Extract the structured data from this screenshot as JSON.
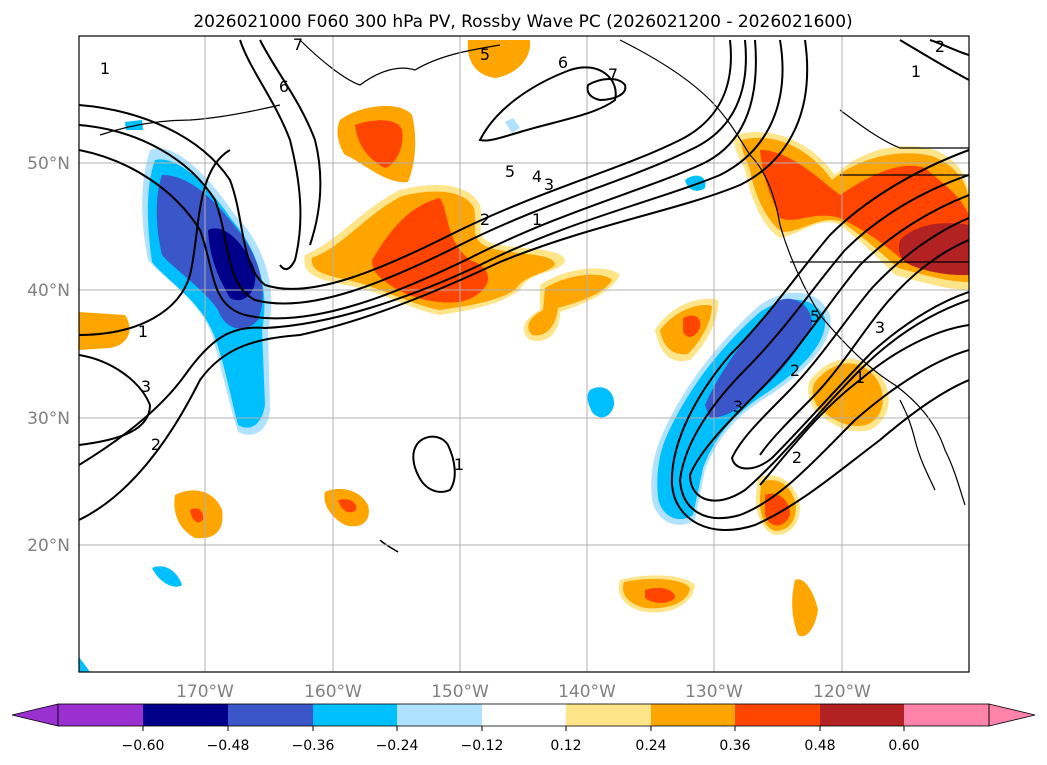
{
  "title": "2026021000 F060 300 hPa PV, Rossby Wave PC (2026021200 - 2026021600)",
  "map": {
    "lon_range": [
      -180,
      -110
    ],
    "lat_range": [
      10,
      60
    ],
    "x_ticks": [
      "170°W",
      "160°W",
      "150°W",
      "140°W",
      "130°W",
      "120°W"
    ],
    "x_tick_values": [
      -170,
      -160,
      -150,
      -140,
      -130,
      -120
    ],
    "y_ticks": [
      "50°N",
      "40°N",
      "30°N",
      "20°N"
    ],
    "y_tick_values": [
      50,
      40,
      30,
      20
    ],
    "gridlines": true
  },
  "colorbar": {
    "levels": [
      "−0.60",
      "−0.48",
      "−0.36",
      "−0.24",
      "−0.12",
      "0.12",
      "0.24",
      "0.36",
      "0.48",
      "0.60"
    ],
    "colors": [
      "#9b30d0",
      "#00008b",
      "#3a56c8",
      "#00bfff",
      "#b0e2ff",
      "#ffffff",
      "#ffe58a",
      "#ffa500",
      "#ff4500",
      "#b22222",
      "#ff83aa"
    ],
    "extend": "both"
  },
  "contours": {
    "labels": [
      "5",
      "6",
      "7",
      "1",
      "2",
      "3",
      "4",
      "5",
      "3",
      "2",
      "1",
      "1",
      "3",
      "2",
      "1",
      "3",
      "2",
      "1",
      "5",
      "6",
      "7",
      "2",
      "1"
    ]
  },
  "colors": {
    "neg_dark": "#00008b",
    "neg_med": "#3a56c8",
    "neg_light": "#00bfff",
    "neg_pale": "#b0e2ff",
    "pos_pale": "#ffe58a",
    "pos_light": "#ffa500",
    "pos_med": "#ff4500",
    "pos_dark": "#b22222"
  }
}
